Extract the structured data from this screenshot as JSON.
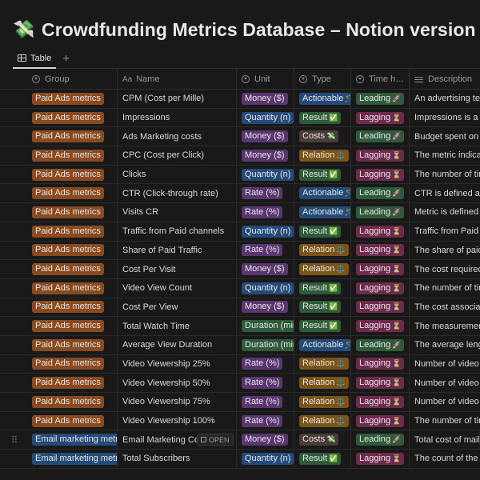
{
  "page": {
    "icon": "money-with-wings-emoji",
    "icon_glyph": "💸",
    "title": "Crowdfunding Metrics Database – Notion version"
  },
  "view_tab": {
    "label": "Table",
    "add_glyph": "+"
  },
  "columns": {
    "group": "Group",
    "name_prefix": "Aa",
    "name": "Name",
    "unit": "Unit",
    "type": "Type",
    "time": "Time h…",
    "description": "Description"
  },
  "row_ui": {
    "drag_glyph": "⠿",
    "open_label": "OPEN"
  },
  "colors": {
    "group_paid": "#8a4a1f",
    "group_email": "#244b78",
    "unit_money": "#5a3670",
    "unit_quantity": "#244b78",
    "unit_rate": "#5a3670",
    "unit_duration": "#2e5a3a",
    "type_actionable": "#244b78",
    "type_result": "#2e5a3a",
    "type_costs": "#4a3b35",
    "type_relation": "#7a5418",
    "time_leading": "#2e5a3a",
    "time_lagging": "#6e2a4c"
  },
  "rows": [
    {
      "group": "Paid Ads metrics",
      "group_style": "paid",
      "name": "CPM (Cost per Mille)",
      "unit": "Money ($)",
      "unit_style": "money",
      "type": "Actionable",
      "type_emoji": "🪄",
      "type_style": "actionable",
      "time": "Leading",
      "time_emoji": "🚀",
      "time_style": "leading",
      "desc": "An advertising ter"
    },
    {
      "group": "Paid Ads metrics",
      "group_style": "paid",
      "name": "Impressions",
      "unit": "Quantity (n)",
      "unit_style": "quantity",
      "type": "Result",
      "type_emoji": "✅",
      "type_style": "result",
      "time": "Lagging",
      "time_emoji": "⏳",
      "time_style": "lagging",
      "desc": "Impressions is a c"
    },
    {
      "group": "Paid Ads metrics",
      "group_style": "paid",
      "name": "Ads Marketing costs",
      "unit": "Money ($)",
      "unit_style": "money",
      "type": "Costs",
      "type_emoji": "💸",
      "type_style": "costs",
      "time": "Leading",
      "time_emoji": "🚀",
      "time_style": "leading",
      "desc": "Budget spent on p"
    },
    {
      "group": "Paid Ads metrics",
      "group_style": "paid",
      "name": "CPC (Cost per Click)",
      "unit": "Money ($)",
      "unit_style": "money",
      "type": "Relation",
      "type_emoji": "⚖️",
      "type_style": "relation",
      "time": "Lagging",
      "time_emoji": "⏳",
      "time_style": "lagging",
      "desc": "The metric indicat"
    },
    {
      "group": "Paid Ads metrics",
      "group_style": "paid",
      "name": "Clicks",
      "unit": "Quantity (n)",
      "unit_style": "quantity",
      "type": "Result",
      "type_emoji": "✅",
      "type_style": "result",
      "time": "Lagging",
      "time_emoji": "⏳",
      "time_style": "lagging",
      "desc": "The number of tim"
    },
    {
      "group": "Paid Ads metrics",
      "group_style": "paid",
      "name": "CTR (Click-through rate)",
      "unit": "Rate (%)",
      "unit_style": "rate",
      "type": "Actionable",
      "type_emoji": "🪄",
      "type_style": "actionable",
      "time": "Leading",
      "time_emoji": "🚀",
      "time_style": "leading",
      "desc": "CTR is defined as"
    },
    {
      "group": "Paid Ads metrics",
      "group_style": "paid",
      "name": "Visits CR",
      "unit": "Rate (%)",
      "unit_style": "rate",
      "type": "Actionable",
      "type_emoji": "🪄",
      "type_style": "actionable",
      "time": "Leading",
      "time_emoji": "🚀",
      "time_style": "leading",
      "desc": "Metric is defined a"
    },
    {
      "group": "Paid Ads metrics",
      "group_style": "paid",
      "name": "Traffic from Paid channels",
      "unit": "Quantity (n)",
      "unit_style": "quantity",
      "type": "Result",
      "type_emoji": "✅",
      "type_style": "result",
      "time": "Lagging",
      "time_emoji": "⏳",
      "time_style": "lagging",
      "desc": "Traffic from Paid c"
    },
    {
      "group": "Paid Ads metrics",
      "group_style": "paid",
      "name": "Share of Paid Traffic",
      "unit": "Rate (%)",
      "unit_style": "rate",
      "type": "Relation",
      "type_emoji": "⚖️",
      "type_style": "relation",
      "time": "Lagging",
      "time_emoji": "⏳",
      "time_style": "lagging",
      "desc": "The share of paid"
    },
    {
      "group": "Paid Ads metrics",
      "group_style": "paid",
      "name": "Cost Per Visit",
      "unit": "Money ($)",
      "unit_style": "money",
      "type": "Relation",
      "type_emoji": "⚖️",
      "type_style": "relation",
      "time": "Lagging",
      "time_emoji": "⏳",
      "time_style": "lagging",
      "desc": "The cost required"
    },
    {
      "group": "Paid Ads metrics",
      "group_style": "paid",
      "name": "Video View Count",
      "unit": "Quantity (n)",
      "unit_style": "quantity",
      "type": "Result",
      "type_emoji": "✅",
      "type_style": "result",
      "time": "Lagging",
      "time_emoji": "⏳",
      "time_style": "lagging",
      "desc": "The number of tim"
    },
    {
      "group": "Paid Ads metrics",
      "group_style": "paid",
      "name": "Cost Per View",
      "unit": "Money ($)",
      "unit_style": "money",
      "type": "Result",
      "type_emoji": "✅",
      "type_style": "result",
      "time": "Lagging",
      "time_emoji": "⏳",
      "time_style": "lagging",
      "desc": "The cost associate"
    },
    {
      "group": "Paid Ads metrics",
      "group_style": "paid",
      "name": "Total Watch Time",
      "unit": "Duration (mir",
      "unit_style": "duration",
      "type": "Result",
      "type_emoji": "✅",
      "type_style": "result",
      "time": "Lagging",
      "time_emoji": "⏳",
      "time_style": "lagging",
      "desc": "The measurement"
    },
    {
      "group": "Paid Ads metrics",
      "group_style": "paid",
      "name": "Average View Duration",
      "unit": "Duration (mir",
      "unit_style": "duration",
      "type": "Actionable",
      "type_emoji": "🪄",
      "type_style": "actionable",
      "time": "Leading",
      "time_emoji": "🚀",
      "time_style": "leading",
      "desc": "The average lengt"
    },
    {
      "group": "Paid Ads metrics",
      "group_style": "paid",
      "name": "Video Viewership 25%",
      "unit": "Rate (%)",
      "unit_style": "rate",
      "type": "Relation",
      "type_emoji": "⚖️",
      "type_style": "relation",
      "time": "Lagging",
      "time_emoji": "⏳",
      "time_style": "lagging",
      "desc": "Number of video v"
    },
    {
      "group": "Paid Ads metrics",
      "group_style": "paid",
      "name": "Video Viewership 50%",
      "unit": "Rate (%)",
      "unit_style": "rate",
      "type": "Relation",
      "type_emoji": "⚖️",
      "type_style": "relation",
      "time": "Lagging",
      "time_emoji": "⏳",
      "time_style": "lagging",
      "desc": "Number of video v"
    },
    {
      "group": "Paid Ads metrics",
      "group_style": "paid",
      "name": "Video Viewership 75%",
      "unit": "Rate (%)",
      "unit_style": "rate",
      "type": "Relation",
      "type_emoji": "⚖️",
      "type_style": "relation",
      "time": "Lagging",
      "time_emoji": "⏳",
      "time_style": "lagging",
      "desc": "Number of video v"
    },
    {
      "group": "Paid Ads metrics",
      "group_style": "paid",
      "name": "Video Viewership 100%",
      "unit": "Rate (%)",
      "unit_style": "rate",
      "type": "Relation",
      "type_emoji": "⚖️",
      "type_style": "relation",
      "time": "Lagging",
      "time_emoji": "⏳",
      "time_style": "lagging",
      "desc": "The number of tim"
    },
    {
      "group": "Email marketing metric",
      "group_style": "email",
      "name": "Email Marketing Co",
      "unit": "Money ($)",
      "unit_style": "money",
      "type": "Costs",
      "type_emoji": "💸",
      "type_style": "costs",
      "time": "Leading",
      "time_emoji": "🚀",
      "time_style": "leading",
      "desc": "Total cost of maili",
      "hovered": true
    },
    {
      "group": "Email marketing metric",
      "group_style": "email",
      "name": "Total Subscribers",
      "unit": "Quantity (n)",
      "unit_style": "quantity",
      "type": "Result",
      "type_emoji": "✅",
      "type_style": "result",
      "time": "Lagging",
      "time_emoji": "⏳",
      "time_style": "lagging",
      "desc": "The count of the n"
    }
  ]
}
